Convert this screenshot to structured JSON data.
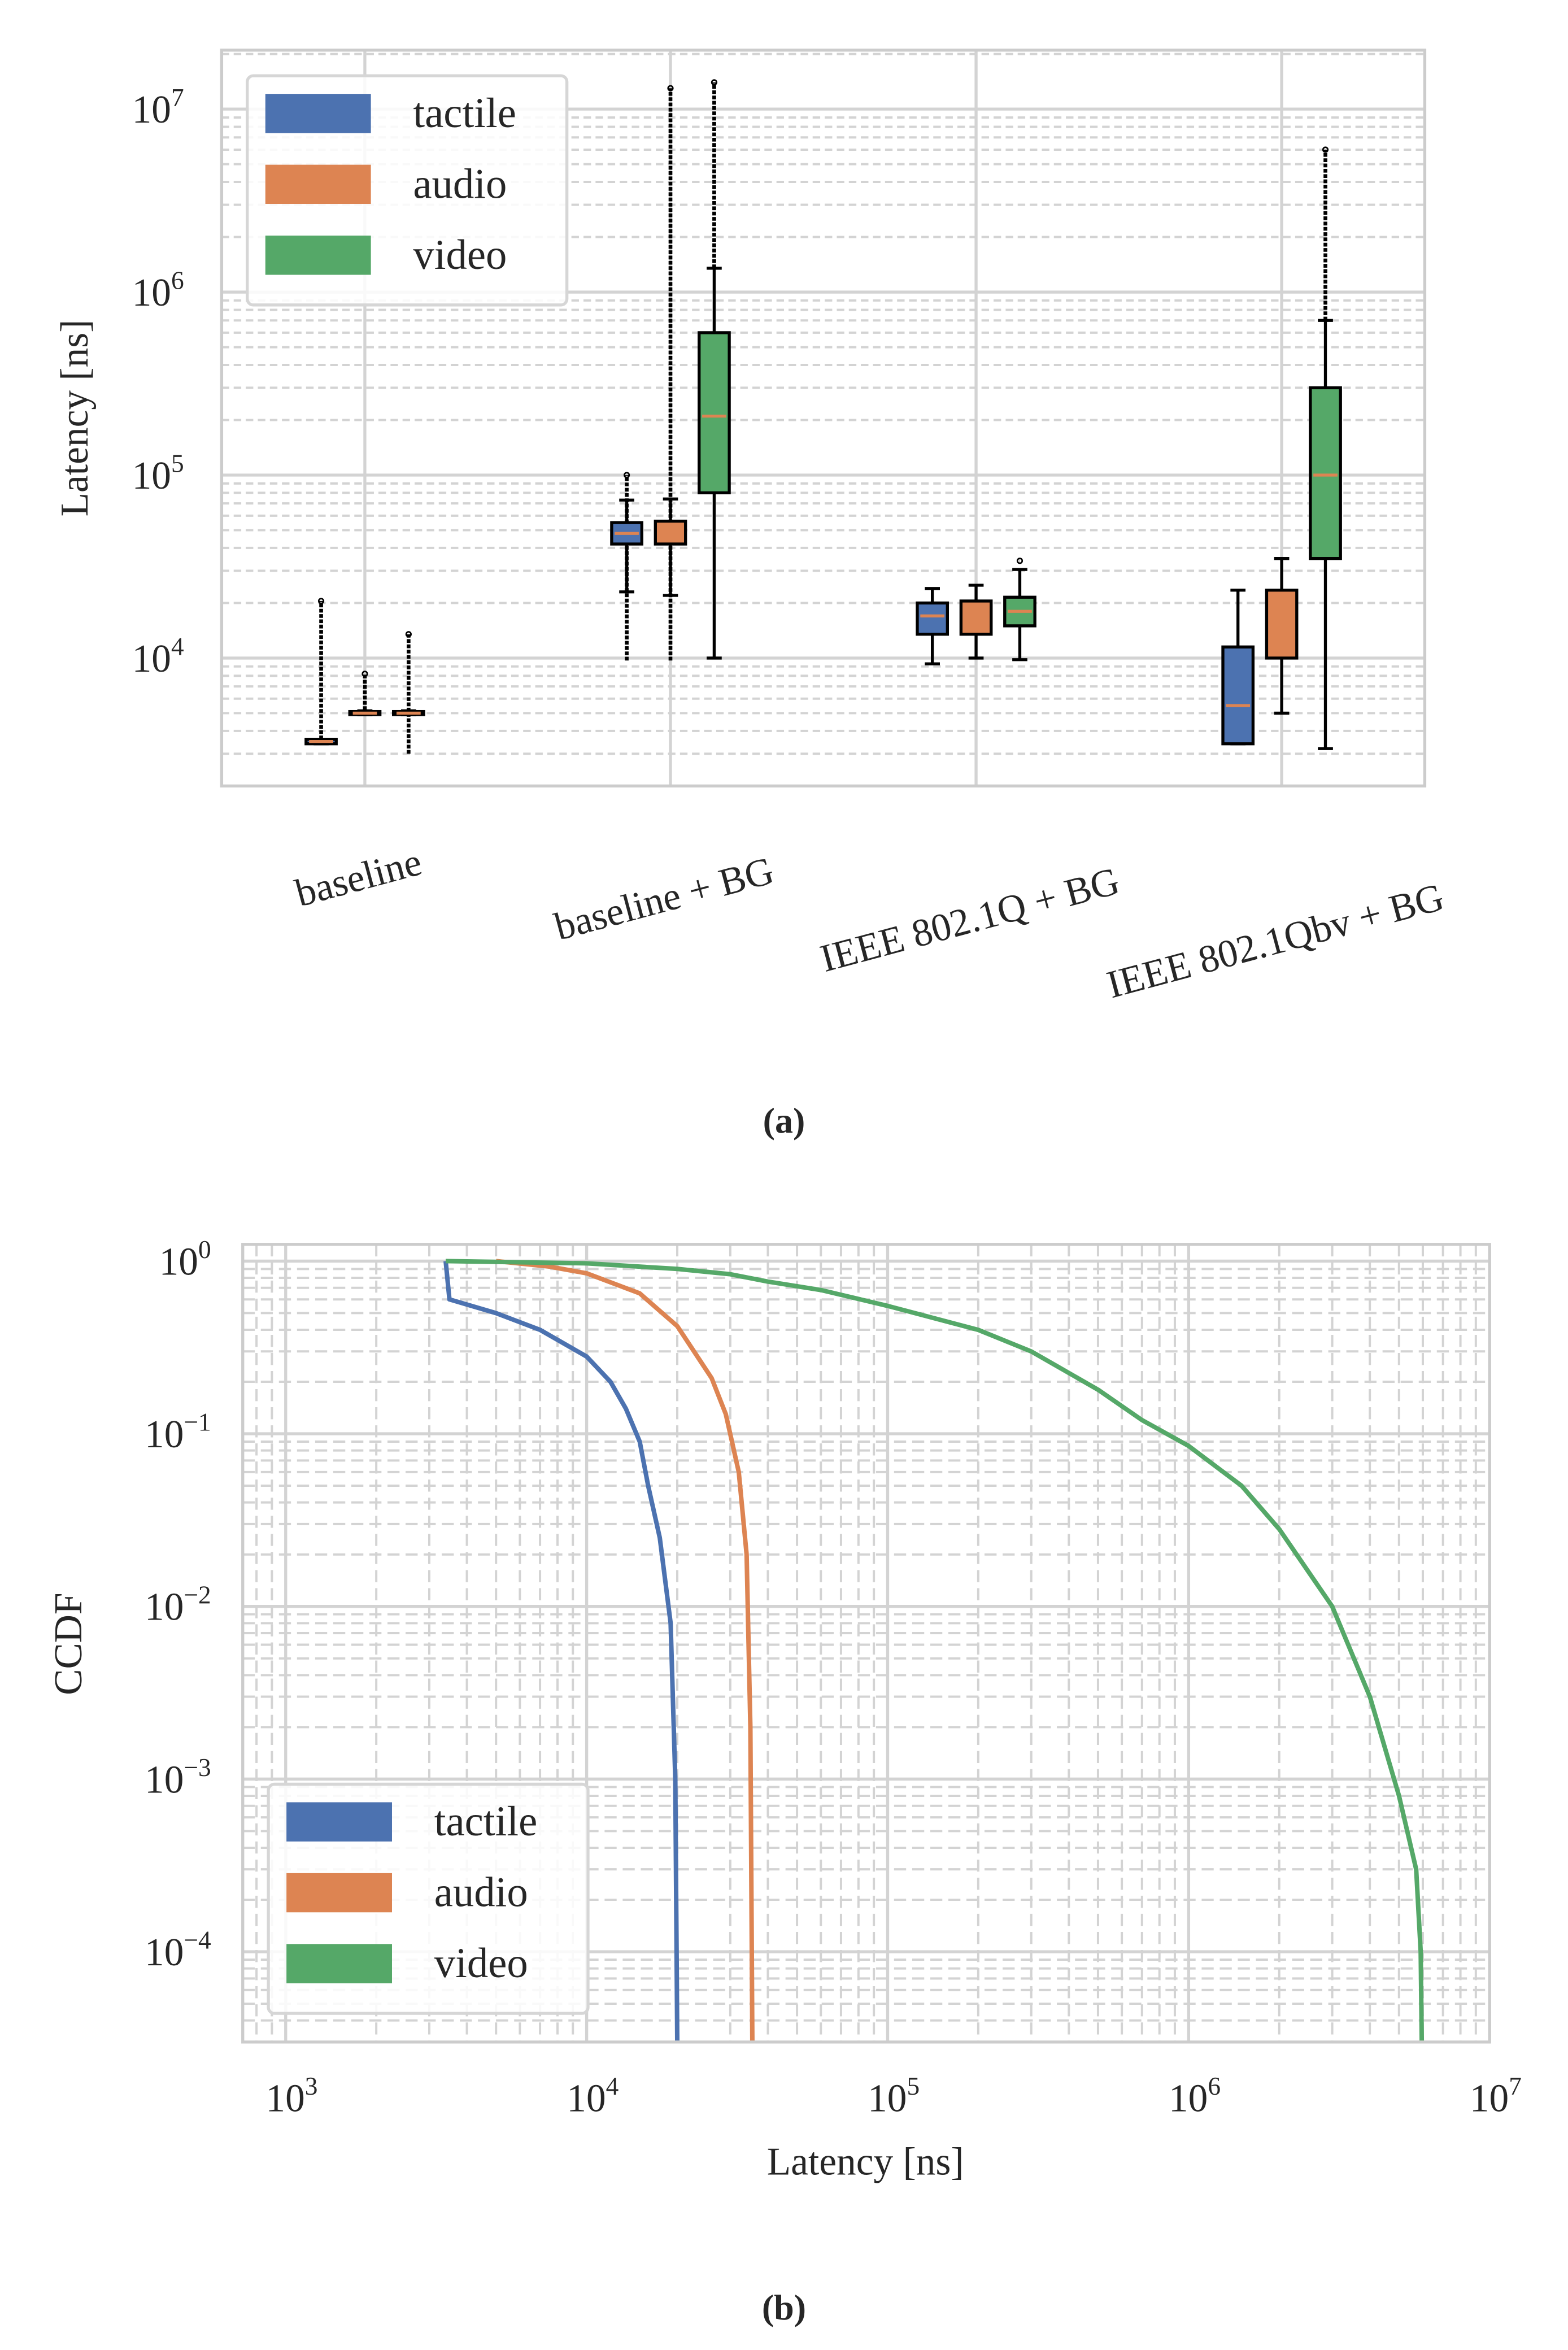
{
  "colors": {
    "tactile": "#4c72b0",
    "audio": "#dd8452",
    "video": "#55a868",
    "grid": "#d3d3d3",
    "axes": "#cccccc"
  },
  "chart_data": [
    {
      "type": "box",
      "caption": "(a)",
      "ylabel": "Latency [ns]",
      "yscale": "log",
      "ylim": [
        2000,
        21000000
      ],
      "yticks": [
        {
          "base": "10",
          "exp": "4",
          "value": 10000
        },
        {
          "base": "10",
          "exp": "5",
          "value": 100000
        },
        {
          "base": "10",
          "exp": "6",
          "value": 1000000
        },
        {
          "base": "10",
          "exp": "7",
          "value": 10000000
        }
      ],
      "categories": [
        "baseline",
        "baseline + BG",
        "IEEE 802.1Q + BG",
        "IEEE 802.1Qbv + BG"
      ],
      "legend": {
        "placement": "top-left",
        "entries": [
          "tactile",
          "audio",
          "video"
        ]
      },
      "series": [
        {
          "name": "tactile",
          "boxes": [
            {
              "q1": 3400,
              "median": 3500,
              "q3": 3600,
              "whislo": 3400,
              "whishi": 3600,
              "fliers_range": [
                3600,
                20500
              ]
            },
            {
              "q1": 42000,
              "median": 48000,
              "q3": 55000,
              "whislo": 23000,
              "whishi": 73000,
              "fliers_range": [
                9700,
                100000
              ]
            },
            {
              "q1": 13500,
              "median": 17000,
              "q3": 20000,
              "whislo": 9300,
              "whishi": 24000,
              "fliers_range": null
            },
            {
              "q1": 3400,
              "median": 5500,
              "q3": 11500,
              "whislo": 3400,
              "whishi": 23500,
              "fliers_range": null
            }
          ]
        },
        {
          "name": "audio",
          "boxes": [
            {
              "q1": 4950,
              "median": 5000,
              "q3": 5100,
              "whislo": 4900,
              "whishi": 5150,
              "fliers_range": [
                5200,
                8200
              ]
            },
            {
              "q1": 42000,
              "median": 48000,
              "q3": 56000,
              "whislo": 22000,
              "whishi": 74000,
              "fliers_range": [
                9700,
                13000000
              ]
            },
            {
              "q1": 13500,
              "median": 16500,
              "q3": 20500,
              "whislo": 10000,
              "whishi": 25000,
              "fliers_range": null
            },
            {
              "q1": 10000,
              "median": 16000,
              "q3": 23500,
              "whislo": 5000,
              "whishi": 35000,
              "fliers_range": null
            }
          ]
        },
        {
          "name": "video",
          "boxes": [
            {
              "q1": 4950,
              "median": 5000,
              "q3": 5100,
              "whislo": 4900,
              "whishi": 5150,
              "fliers_range": [
                3000,
                13500
              ]
            },
            {
              "q1": 80000,
              "median": 210000,
              "q3": 600000,
              "whislo": 10000,
              "whishi": 1350000,
              "fliers_range": [
                1350000,
                14000000
              ]
            },
            {
              "q1": 15000,
              "median": 18000,
              "q3": 21500,
              "whislo": 9800,
              "whishi": 30500,
              "fliers_range": [
                34000,
                34000
              ]
            },
            {
              "q1": 35000,
              "median": 100000,
              "q3": 300000,
              "whislo": 3200,
              "whishi": 700000,
              "fliers_range": [
                700000,
                6000000
              ]
            }
          ]
        }
      ]
    },
    {
      "type": "line",
      "caption": "(b)",
      "xlabel": "Latency [ns]",
      "ylabel": "CCDF",
      "xscale": "log",
      "yscale": "log",
      "xlim": [
        720,
        10000000
      ],
      "ylim": [
        3e-05,
        1.25
      ],
      "xticks": [
        {
          "base": "10",
          "exp": "3",
          "value": 1000
        },
        {
          "base": "10",
          "exp": "4",
          "value": 10000
        },
        {
          "base": "10",
          "exp": "5",
          "value": 100000
        },
        {
          "base": "10",
          "exp": "6",
          "value": 1000000
        },
        {
          "base": "10",
          "exp": "7",
          "value": 10000000
        }
      ],
      "yticks": [
        {
          "base": "10",
          "exp": "0",
          "value": 1
        },
        {
          "base": "10",
          "exp": "−1",
          "value": 0.1
        },
        {
          "base": "10",
          "exp": "−2",
          "value": 0.01
        },
        {
          "base": "10",
          "exp": "−3",
          "value": 0.001
        },
        {
          "base": "10",
          "exp": "−4",
          "value": 0.0001
        }
      ],
      "legend": {
        "placement": "lower-left",
        "entries": [
          "tactile",
          "audio",
          "video"
        ]
      },
      "series": [
        {
          "name": "tactile",
          "x": [
            3400,
            3500,
            5000,
            7000,
            10000,
            12000,
            13500,
            15000,
            16000,
            17500,
            19000,
            19700,
            20000
          ],
          "y": [
            1,
            0.6,
            0.5,
            0.4,
            0.28,
            0.2,
            0.14,
            0.09,
            0.05,
            0.025,
            0.008,
            0.001,
            3e-05
          ]
        },
        {
          "name": "audio",
          "x": [
            5000,
            7500,
            10000,
            15000,
            20000,
            24000,
            26000,
            29000,
            32000,
            34000,
            35000,
            35500
          ],
          "y": [
            1,
            0.93,
            0.85,
            0.65,
            0.42,
            0.26,
            0.21,
            0.13,
            0.06,
            0.02,
            0.002,
            3e-05
          ]
        },
        {
          "name": "video",
          "x": [
            3400,
            10000,
            20000,
            30000,
            40000,
            60000,
            100000,
            200000,
            300000,
            500000,
            700000,
            1000000,
            1500000,
            2000000,
            3000000,
            4000000,
            5000000,
            5700000,
            5900000,
            5950000
          ],
          "y": [
            1,
            0.97,
            0.9,
            0.84,
            0.76,
            0.68,
            0.55,
            0.4,
            0.3,
            0.18,
            0.12,
            0.085,
            0.05,
            0.028,
            0.01,
            0.003,
            0.0008,
            0.0003,
            0.0001,
            3e-05
          ]
        }
      ]
    }
  ]
}
